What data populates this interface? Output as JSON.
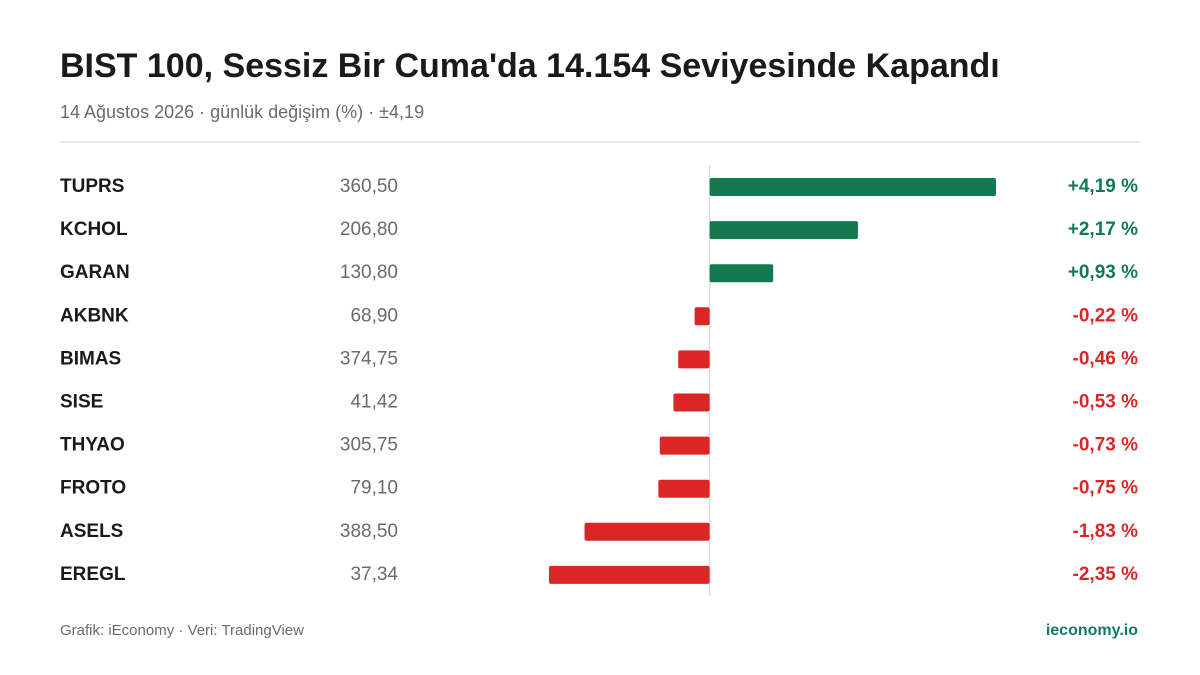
{
  "chart_data": {
    "type": "bar",
    "title": "BIST 100, Sessiz Bir Cuma'da 14.154  Seviyesinde Kapandı",
    "subtitle": "14 Ağustos 2026 · günlük değişim (%) · ±4,19",
    "categories": [
      "TUPRS",
      "KCHOL",
      "GARAN",
      "AKBNK",
      "BIMAS",
      "SISE",
      "THYAO",
      "FROTO",
      "ASELS",
      "EREGL"
    ],
    "prices": [
      "360,50",
      "206,80",
      "130,80",
      "68,90",
      "374,75",
      "41,42",
      "305,75",
      "79,10",
      "388,50",
      "37,34"
    ],
    "values": [
      4.19,
      2.17,
      0.93,
      -0.22,
      -0.46,
      -0.53,
      -0.73,
      -0.75,
      -1.83,
      -2.35
    ],
    "value_labels": [
      "+4,19 %",
      "+2,17 %",
      "+0,93 %",
      "-0,22 %",
      "-0,46 %",
      "-0,53 %",
      "-0,73 %",
      "-0,75 %",
      "-1,83 %",
      "-2,35 %"
    ],
    "positive_color": "#137a4f",
    "negative_color": "#dc2626",
    "source": "Grafik: iEconomy · Veri: TradingView",
    "brand": "ieconomy.io"
  }
}
